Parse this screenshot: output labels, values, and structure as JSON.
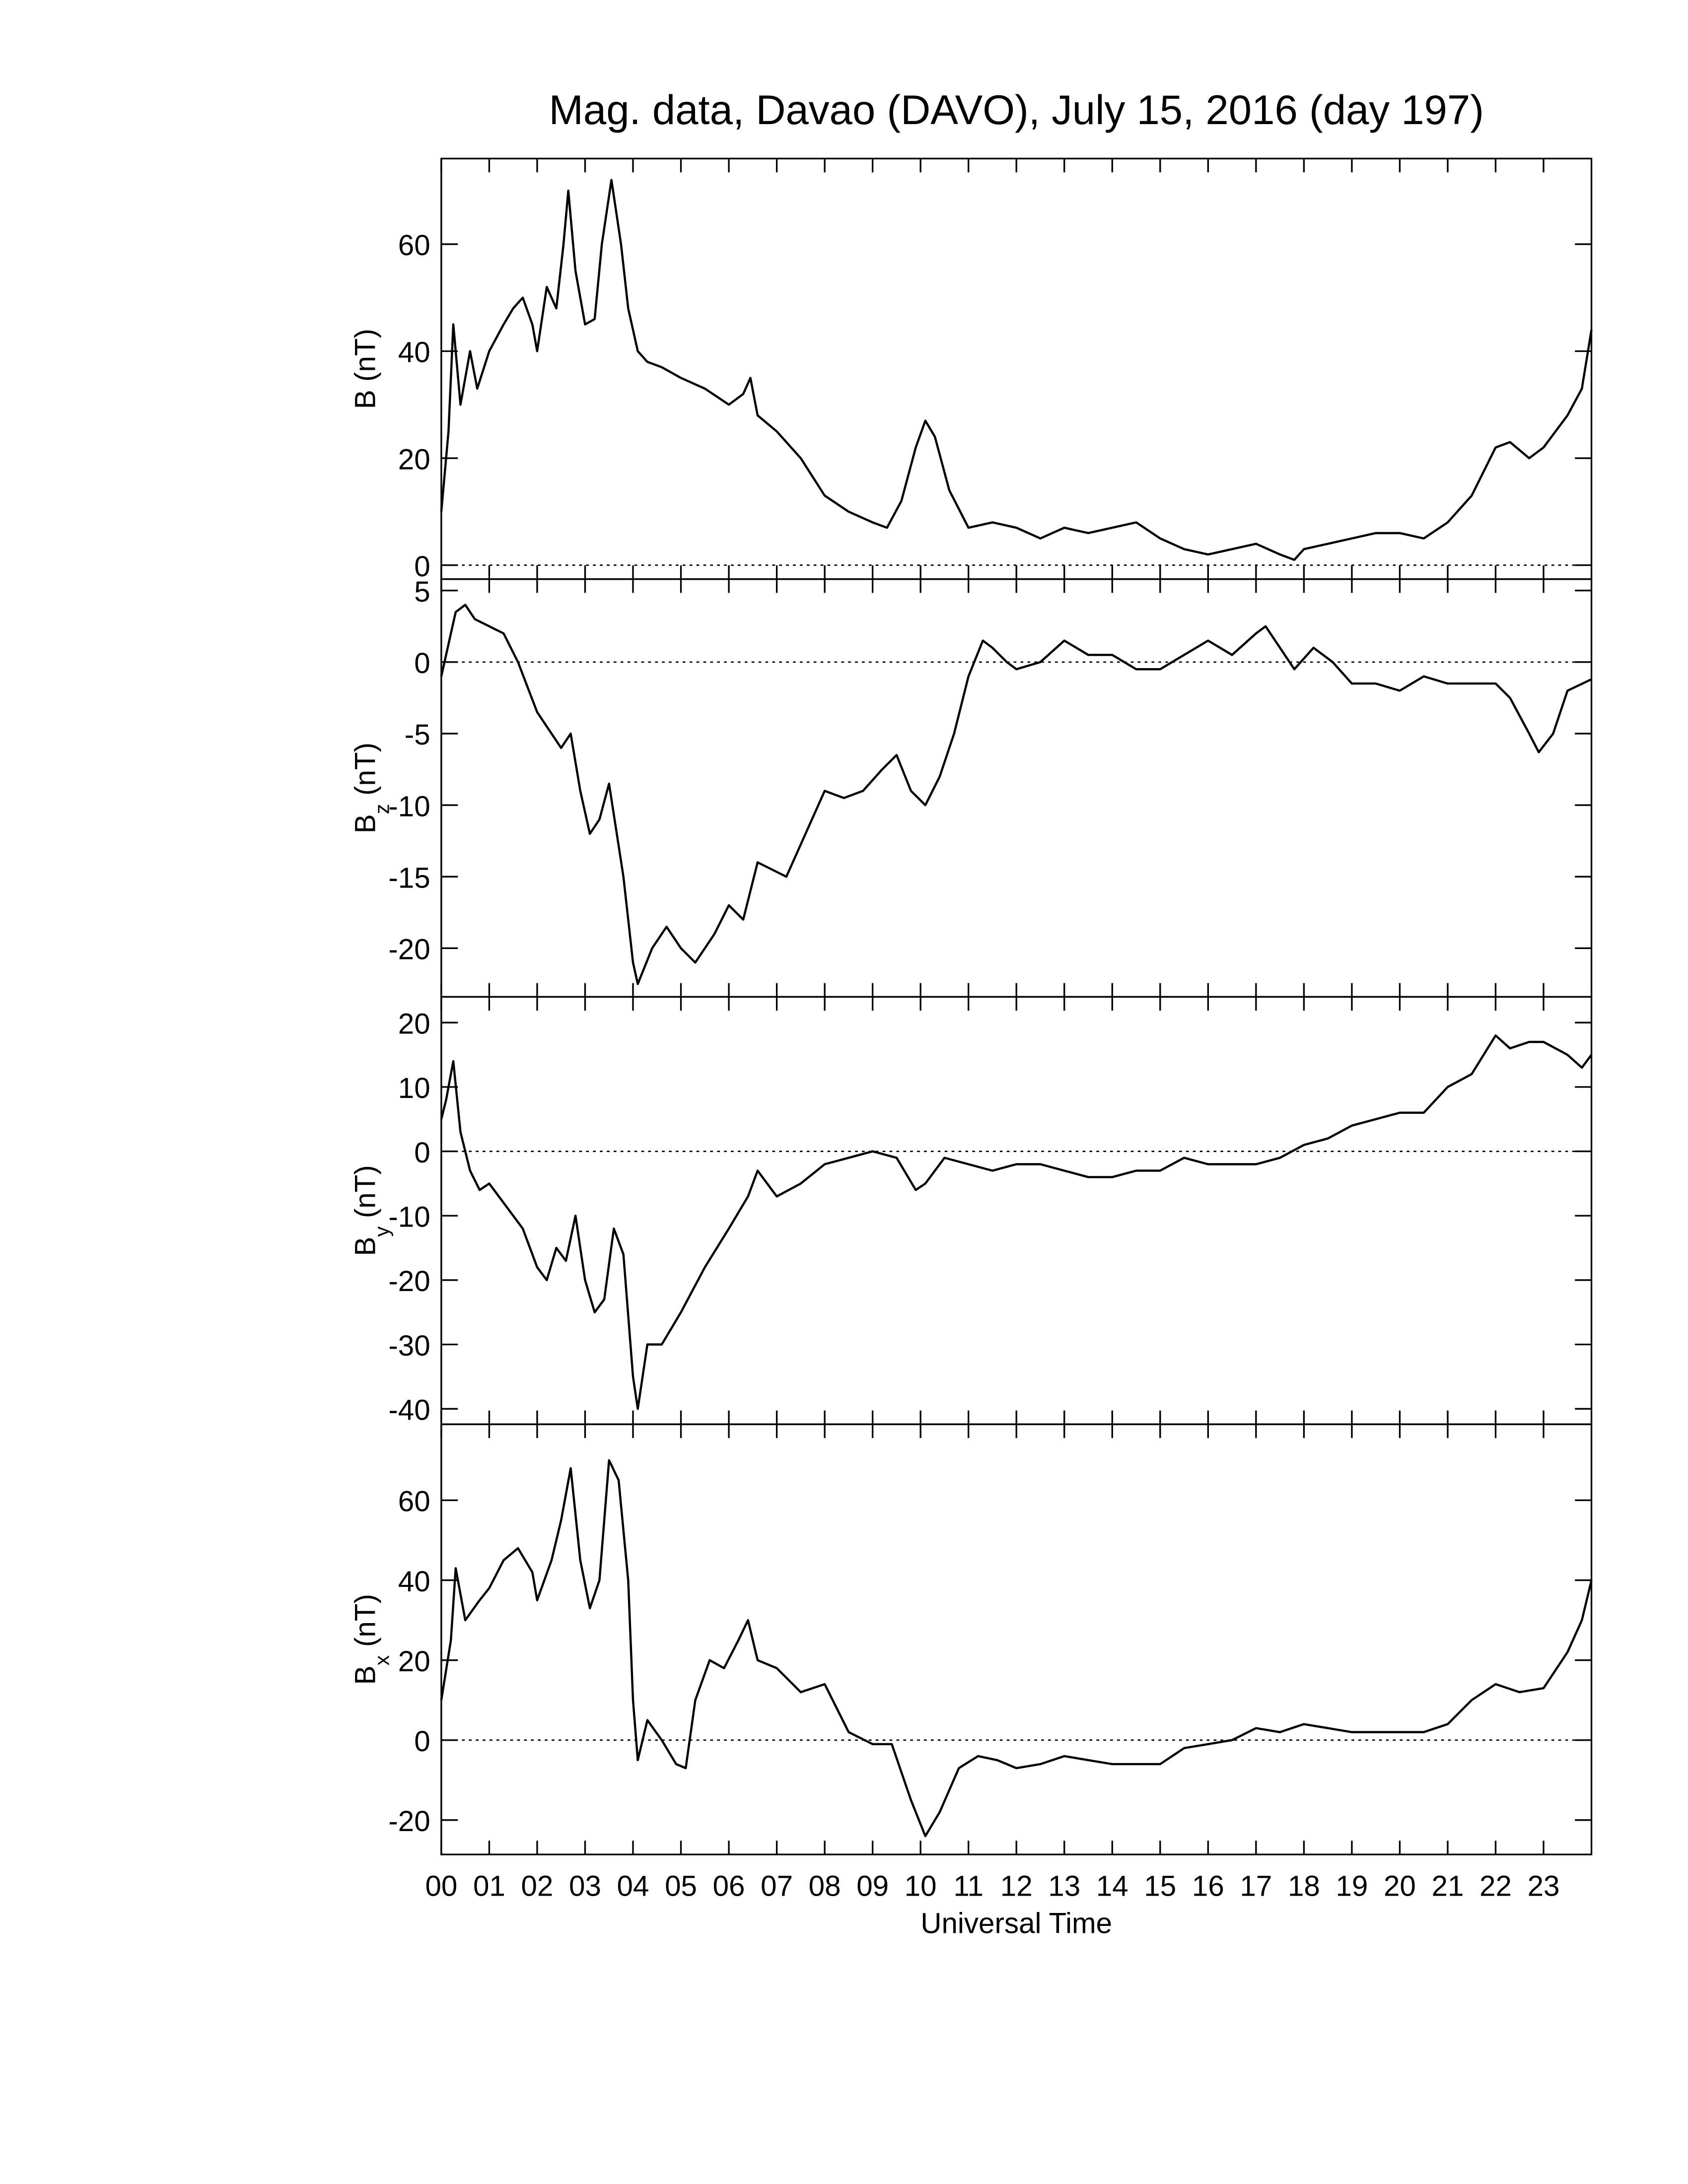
{
  "chart_data": [
    {
      "type": "line",
      "title": "Mag. data, Davao (DAVO), July 15, 2016 (day 197)",
      "ylabel": "B (nT)",
      "xlim": [
        0,
        24
      ],
      "ylim": [
        -2.6,
        76
      ],
      "yticks": [
        0,
        20,
        40,
        60
      ],
      "zero_line": true,
      "x": [
        0,
        0.15,
        0.25,
        0.4,
        0.6,
        0.75,
        1,
        1.3,
        1.5,
        1.7,
        1.9,
        2,
        2.2,
        2.4,
        2.55,
        2.65,
        2.8,
        3,
        3.2,
        3.35,
        3.55,
        3.75,
        3.9,
        4.1,
        4.3,
        4.6,
        5,
        5.5,
        6,
        6.3,
        6.45,
        6.6,
        7,
        7.5,
        8,
        8.5,
        9,
        9.3,
        9.6,
        9.9,
        10.1,
        10.3,
        10.6,
        11,
        11.5,
        12,
        12.5,
        13,
        13.5,
        14,
        14.5,
        15,
        15.5,
        16,
        16.5,
        17,
        17.5,
        17.8,
        18,
        18.5,
        19,
        19.5,
        20,
        20.5,
        21,
        21.5,
        22,
        22.3,
        22.7,
        23,
        23.5,
        23.8,
        24
      ],
      "series": [
        {
          "color": "#000000",
          "values": [
            10,
            25,
            45,
            30,
            40,
            33,
            40,
            45,
            48,
            50,
            45,
            40,
            52,
            48,
            60,
            70,
            55,
            45,
            46,
            60,
            72,
            60,
            48,
            40,
            38,
            37,
            35,
            33,
            30,
            32,
            35,
            28,
            25,
            20,
            13,
            10,
            8,
            7,
            12,
            22,
            27,
            24,
            14,
            7,
            8,
            7,
            5,
            7,
            6,
            7,
            8,
            5,
            3,
            2,
            3,
            4,
            2,
            1,
            3,
            4,
            5,
            6,
            6,
            5,
            8,
            13,
            22,
            23,
            20,
            22,
            28,
            33,
            44
          ]
        }
      ]
    },
    {
      "type": "line",
      "ylabel": "B",
      "ylabel_sub": "z",
      "ylabel_unit": "(nT)",
      "xlim": [
        0,
        24
      ],
      "ylim": [
        -23.4,
        5.8
      ],
      "yticks": [
        -20,
        -15,
        -10,
        -5,
        0,
        5
      ],
      "zero_line": true,
      "x": [
        0,
        0.2,
        0.3,
        0.5,
        0.7,
        1,
        1.3,
        1.6,
        2,
        2.3,
        2.5,
        2.7,
        2.9,
        3.1,
        3.3,
        3.5,
        3.8,
        4,
        4.1,
        4.4,
        4.7,
        5,
        5.3,
        5.7,
        6,
        6.3,
        6.6,
        6.9,
        7.2,
        7.6,
        8,
        8.4,
        8.8,
        9.2,
        9.5,
        9.8,
        10.1,
        10.4,
        10.7,
        11,
        11.3,
        11.5,
        11.8,
        12,
        12.5,
        13,
        13.5,
        14,
        14.5,
        15,
        15.5,
        16,
        16.5,
        17,
        17.2,
        17.5,
        17.8,
        18.2,
        18.6,
        19,
        19.5,
        20,
        20.5,
        21,
        21.5,
        22,
        22.3,
        22.7,
        22.9,
        23.2,
        23.5,
        24
      ],
      "series": [
        {
          "color": "#000000",
          "values": [
            -1,
            2,
            3.5,
            4,
            3,
            2.5,
            2,
            0,
            -3.5,
            -5,
            -6,
            -5,
            -9,
            -12,
            -11,
            -8.5,
            -15,
            -21,
            -22.5,
            -20,
            -18.5,
            -20,
            -21,
            -19,
            -17,
            -18,
            -14,
            -14.5,
            -15,
            -12,
            -9,
            -9.5,
            -9,
            -7.5,
            -6.5,
            -9,
            -10,
            -8,
            -5,
            -1,
            1.5,
            1,
            0,
            -0.5,
            0,
            1.5,
            0.5,
            0.5,
            -0.5,
            -0.5,
            0.5,
            1.5,
            0.5,
            2,
            2.5,
            1,
            -0.5,
            1,
            0,
            -1.5,
            -1.5,
            -2,
            -1,
            -1.5,
            -1.5,
            -1.5,
            -2.5,
            -5,
            -6.3,
            -5,
            -2,
            -1.2
          ]
        }
      ]
    },
    {
      "type": "line",
      "ylabel": "B",
      "ylabel_sub": "y",
      "ylabel_unit": "(nT)",
      "xlim": [
        0,
        24
      ],
      "ylim": [
        -42.4,
        24
      ],
      "yticks": [
        -40,
        -30,
        -20,
        -10,
        0,
        10,
        20
      ],
      "zero_line": true,
      "x": [
        0,
        0.1,
        0.25,
        0.4,
        0.6,
        0.8,
        1,
        1.4,
        1.7,
        2,
        2.2,
        2.4,
        2.6,
        2.8,
        3,
        3.2,
        3.4,
        3.6,
        3.8,
        4,
        4.1,
        4.3,
        4.6,
        5,
        5.5,
        6,
        6.4,
        6.6,
        7,
        7.5,
        8,
        8.5,
        9,
        9.5,
        9.9,
        10.1,
        10.5,
        11,
        11.5,
        12,
        12.5,
        13,
        13.5,
        14,
        14.5,
        15,
        15.5,
        16,
        16.5,
        17,
        17.5,
        18,
        18.5,
        19,
        19.5,
        20,
        20.5,
        21,
        21.5,
        22,
        22.3,
        22.7,
        23,
        23.5,
        23.8,
        24
      ],
      "series": [
        {
          "color": "#000000",
          "values": [
            5,
            8,
            14,
            3,
            -3,
            -6,
            -5,
            -9,
            -12,
            -18,
            -20,
            -15,
            -17,
            -10,
            -20,
            -25,
            -23,
            -12,
            -16,
            -35,
            -40,
            -30,
            -30,
            -25,
            -18,
            -12,
            -7,
            -3,
            -7,
            -5,
            -2,
            -1,
            0,
            -1,
            -6,
            -5,
            -1,
            -2,
            -3,
            -2,
            -2,
            -3,
            -4,
            -4,
            -3,
            -3,
            -1,
            -2,
            -2,
            -2,
            -1,
            1,
            2,
            4,
            5,
            6,
            6,
            10,
            12,
            18,
            16,
            17,
            17,
            15,
            13,
            15
          ]
        }
      ]
    },
    {
      "type": "line",
      "ylabel": "B",
      "ylabel_sub": "x",
      "ylabel_unit": "(nT)",
      "xlabel": "Universal Time",
      "xlim": [
        0,
        24
      ],
      "ylim": [
        -28.6,
        79
      ],
      "yticks": [
        -20,
        0,
        20,
        40,
        60
      ],
      "zero_line": true,
      "xticks": [
        {
          "value": 0,
          "label": "00"
        },
        {
          "value": 1,
          "label": "01"
        },
        {
          "value": 2,
          "label": "02"
        },
        {
          "value": 3,
          "label": "03"
        },
        {
          "value": 4,
          "label": "04"
        },
        {
          "value": 5,
          "label": "05"
        },
        {
          "value": 6,
          "label": "06"
        },
        {
          "value": 7,
          "label": "07"
        },
        {
          "value": 8,
          "label": "08"
        },
        {
          "value": 9,
          "label": "09"
        },
        {
          "value": 10,
          "label": "10"
        },
        {
          "value": 11,
          "label": "11"
        },
        {
          "value": 12,
          "label": "12"
        },
        {
          "value": 13,
          "label": "13"
        },
        {
          "value": 14,
          "label": "14"
        },
        {
          "value": 15,
          "label": "15"
        },
        {
          "value": 16,
          "label": "16"
        },
        {
          "value": 17,
          "label": "17"
        },
        {
          "value": 18,
          "label": "18"
        },
        {
          "value": 19,
          "label": "19"
        },
        {
          "value": 20,
          "label": "20"
        },
        {
          "value": 21,
          "label": "21"
        },
        {
          "value": 22,
          "label": "22"
        },
        {
          "value": 23,
          "label": "23"
        }
      ],
      "x": [
        0,
        0.2,
        0.3,
        0.5,
        0.8,
        1,
        1.3,
        1.6,
        1.9,
        2,
        2.3,
        2.5,
        2.7,
        2.9,
        3.1,
        3.3,
        3.5,
        3.7,
        3.9,
        4,
        4.1,
        4.3,
        4.6,
        4.9,
        5.1,
        5.3,
        5.6,
        5.9,
        6.2,
        6.4,
        6.6,
        7,
        7.5,
        8,
        8.5,
        9,
        9.4,
        9.8,
        10.1,
        10.4,
        10.8,
        11.2,
        11.6,
        12,
        12.5,
        13,
        13.5,
        14,
        14.5,
        15,
        15.5,
        16,
        16.5,
        17,
        17.5,
        18,
        18.5,
        19,
        19.5,
        20,
        20.5,
        21,
        21.5,
        22,
        22.5,
        23,
        23.5,
        23.8,
        24
      ],
      "series": [
        {
          "color": "#000000",
          "values": [
            10,
            25,
            43,
            30,
            35,
            38,
            45,
            48,
            42,
            35,
            45,
            55,
            68,
            45,
            33,
            40,
            70,
            65,
            40,
            10,
            -5,
            5,
            0,
            -6,
            -7,
            10,
            20,
            18,
            25,
            30,
            20,
            18,
            12,
            14,
            2,
            -1,
            -1,
            -15,
            -24,
            -18,
            -7,
            -4,
            -5,
            -7,
            -6,
            -4,
            -5,
            -6,
            -6,
            -6,
            -2,
            -1,
            0,
            3,
            2,
            4,
            3,
            2,
            2,
            2,
            2,
            4,
            10,
            14,
            12,
            13,
            22,
            30,
            40
          ]
        }
      ]
    }
  ]
}
